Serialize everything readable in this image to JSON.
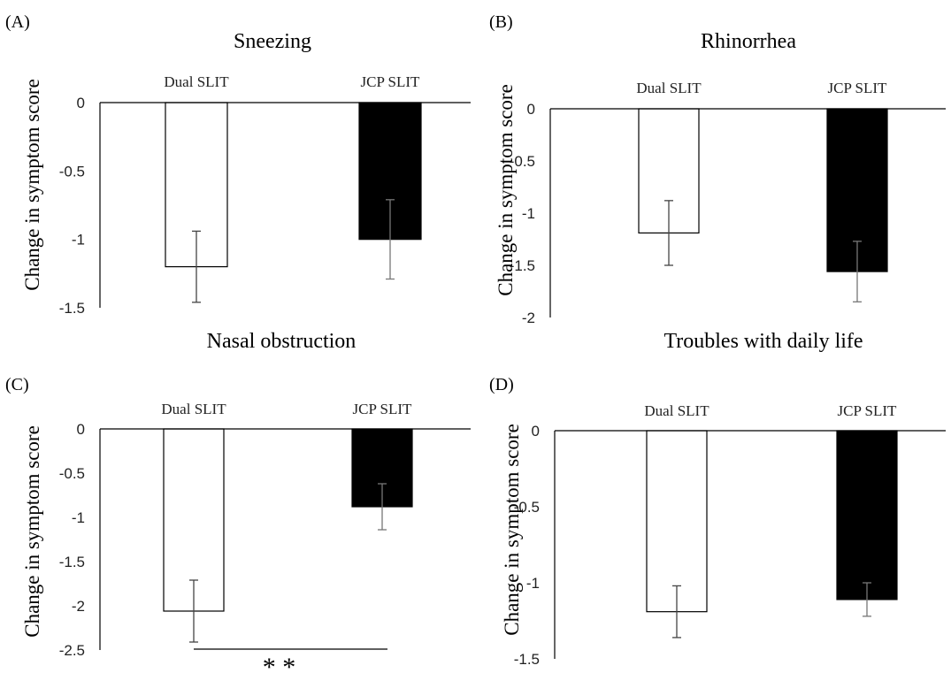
{
  "figure": {
    "series_colors": {
      "Dual SLIT": "#ffffff",
      "JCP SLIT": "#000000"
    }
  },
  "chart_data": [
    {
      "type": "bar",
      "panel_label": "(A)",
      "title": "Sneezing",
      "ylabel": "Change in symptom score",
      "xlabel": "",
      "categories": [
        "Dual SLIT",
        "JCP SLIT"
      ],
      "values": [
        -1.2,
        -1.0
      ],
      "errors": [
        0.26,
        0.29
      ],
      "ylim": [
        -1.5,
        0
      ],
      "yticks": [
        0,
        -0.5,
        -1,
        -1.5
      ],
      "ytick_labels": [
        "0",
        "-0.5",
        "-1",
        "-1.5"
      ],
      "grid": false,
      "significance": null
    },
    {
      "type": "bar",
      "panel_label": "(B)",
      "title": "Rhinorrhea",
      "ylabel": "Change in symptom score",
      "xlabel": "",
      "categories": [
        "Dual SLIT",
        "JCP SLIT"
      ],
      "values": [
        -1.19,
        -1.56
      ],
      "errors": [
        0.31,
        0.29
      ],
      "ylim": [
        -2,
        0
      ],
      "yticks": [
        0,
        -0.5,
        -1,
        -1.5,
        -2
      ],
      "ytick_labels": [
        "0",
        "-0.5",
        "-1",
        "-1.5",
        "-2"
      ],
      "grid": false,
      "significance": null
    },
    {
      "type": "bar",
      "panel_label": "(C)",
      "title": "Nasal obstruction",
      "ylabel": "Change in symptom score",
      "xlabel": "",
      "categories": [
        "Dual SLIT",
        "JCP SLIT"
      ],
      "values": [
        -2.06,
        -0.88
      ],
      "errors": [
        0.35,
        0.26
      ],
      "ylim": [
        -2.5,
        0
      ],
      "yticks": [
        0,
        -0.5,
        -1,
        -1.5,
        -2,
        -2.5
      ],
      "ytick_labels": [
        "0",
        "-0.5",
        "-1",
        "-1.5",
        "-2",
        "-2.5"
      ],
      "grid": false,
      "significance": "* *"
    },
    {
      "type": "bar",
      "panel_label": "(D)",
      "title": "Troubles with daily life",
      "ylabel": "Change in symptom score",
      "xlabel": "",
      "categories": [
        "Dual SLIT",
        "JCP SLIT"
      ],
      "values": [
        -1.19,
        -1.11
      ],
      "errors": [
        0.17,
        0.11
      ],
      "ylim": [
        -1.5,
        0
      ],
      "yticks": [
        0,
        -0.5,
        -1,
        -1.5
      ],
      "ytick_labels": [
        "0",
        "-0.5",
        "-1",
        "-1.5"
      ],
      "grid": false,
      "significance": null
    }
  ]
}
